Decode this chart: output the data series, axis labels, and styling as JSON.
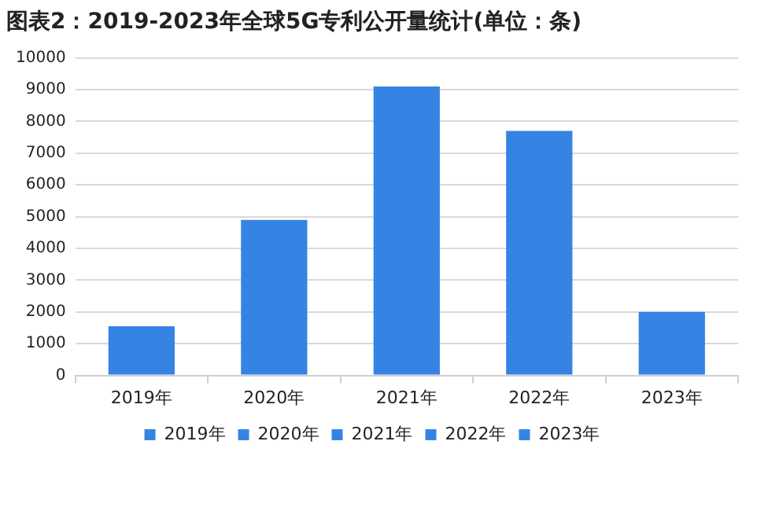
{
  "chart_data": {
    "type": "bar",
    "title": "图表2：2019-2023年全球5G专利公开量统计(单位：条)",
    "categories": [
      "2019年",
      "2020年",
      "2021年",
      "2022年",
      "2023年"
    ],
    "series": [
      {
        "name": "2019年",
        "color": "#3584e4",
        "values": [
          1550,
          null,
          null,
          null,
          null
        ]
      },
      {
        "name": "2020年",
        "color": "#3584e4",
        "values": [
          null,
          4900,
          null,
          null,
          null
        ]
      },
      {
        "name": "2021年",
        "color": "#3584e4",
        "values": [
          null,
          null,
          9100,
          null,
          null
        ]
      },
      {
        "name": "2022年",
        "color": "#3584e4",
        "values": [
          null,
          null,
          null,
          7700,
          null
        ]
      },
      {
        "name": "2023年",
        "color": "#3584e4",
        "values": [
          null,
          null,
          null,
          null,
          2000
        ]
      }
    ],
    "ylim": [
      0,
      10000
    ],
    "yticks": [
      0,
      1000,
      2000,
      3000,
      4000,
      5000,
      6000,
      7000,
      8000,
      9000,
      10000
    ],
    "grid": "y",
    "legend": "bottom"
  }
}
